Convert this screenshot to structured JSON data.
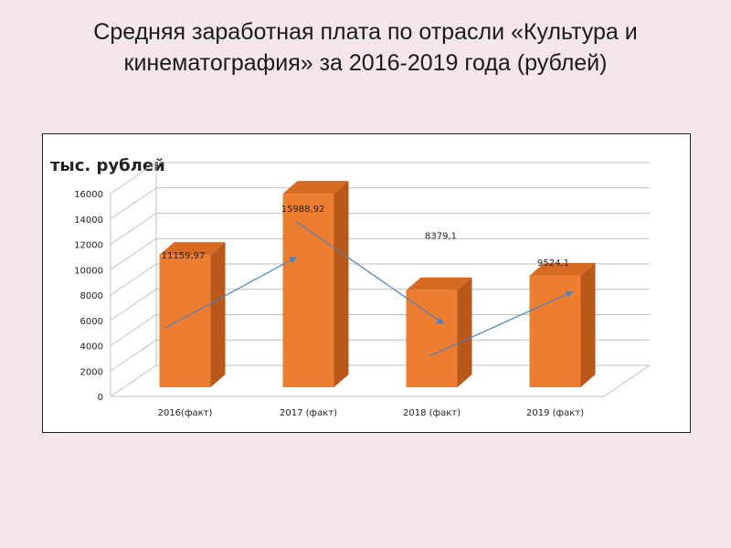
{
  "title": {
    "line1": "Средняя заработная плата по отрасли «Культура и",
    "line2": "кинематография» за  2016-2019 года (рублей)"
  },
  "colors": {
    "bar_front": "#ed7d31",
    "bar_side": "#b9581b",
    "bar_top": "#d96a23",
    "arrow": "#4f81bd",
    "background": "#f4e6ec"
  },
  "chart_data": {
    "type": "bar",
    "title": "Средняя заработная плата по отрасли «Культура и кинематография» за  2016-2019 года (рублей)",
    "ylabel": "тыс. рублей",
    "xlabel": "",
    "categories": [
      "2016(факт)",
      "2017 (факт)",
      "2018 (факт)",
      "2019 (факт)"
    ],
    "values": [
      11159.97,
      15988.92,
      8379.1,
      9524.1
    ],
    "data_labels": [
      "11159,97",
      "15988,92",
      "8379,1",
      "9524,1"
    ],
    "ylim": [
      0,
      16000
    ],
    "yticks": [
      "0",
      "2000",
      "4000",
      "6000",
      "8000",
      "10000",
      "12000",
      "14000",
      "16000"
    ],
    "grid": true,
    "legend": "none"
  }
}
